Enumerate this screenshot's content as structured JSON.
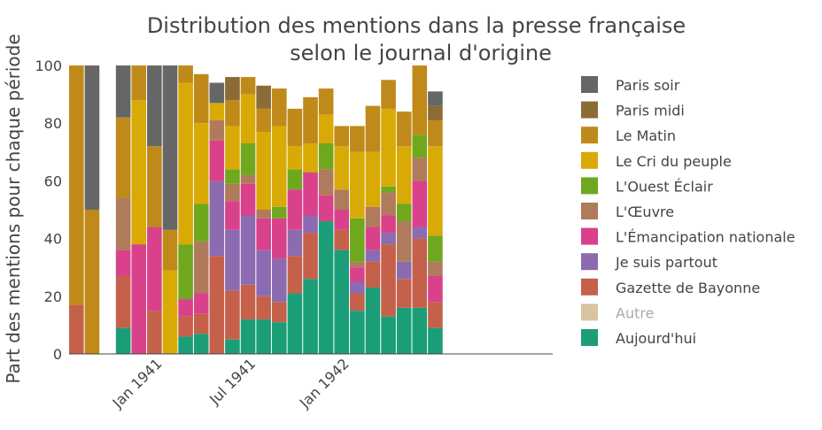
{
  "chart_data": {
    "type": "bar",
    "stacked": true,
    "title_line1": "Distribution des mentions dans la presse française",
    "title_line2": "selon le journal d'origine",
    "xlabel": "",
    "ylabel": "Part des mentions pour chaque période",
    "ylim": [
      0,
      100
    ],
    "yticks": [
      0,
      20,
      40,
      60,
      80,
      100
    ],
    "xtick_labels": [
      "Jan 1941",
      "Jul 1941",
      "Jan 1942"
    ],
    "legend_position": "right",
    "grid": false,
    "categories": [
      "1940-07",
      "1940-08",
      "1940-09",
      "1940-10",
      "1940-11",
      "1940-12",
      "1941-01",
      "1941-02",
      "1941-03",
      "1941-04",
      "1941-05",
      "1941-06",
      "1941-07",
      "1941-08",
      "1941-09",
      "1941-10",
      "1941-11",
      "1941-12",
      "1942-01",
      "1942-02",
      "1942-03",
      "1942-04",
      "1942-05",
      "1942-06",
      "1942-07",
      "1942-08",
      "1942-09",
      "1942-10",
      "1942-11",
      "1942-12",
      "1943-01"
    ],
    "series": [
      {
        "name": "Aujourd'hui",
        "color": "#1b9e77",
        "values": [
          0,
          0,
          0,
          9,
          0,
          0,
          0,
          6,
          7,
          0,
          5,
          12,
          12,
          11,
          21,
          26,
          46,
          36,
          15,
          23,
          13,
          16,
          16,
          9,
          0,
          0,
          0,
          0,
          0,
          0,
          0
        ]
      },
      {
        "name": "Autre",
        "color": "#d9c3a1",
        "values": [
          0,
          0,
          0,
          0,
          0,
          0,
          0,
          0,
          0,
          0,
          0,
          0,
          0,
          0,
          0,
          0,
          0,
          0,
          0,
          0,
          0,
          0,
          0,
          0,
          0,
          0,
          0,
          0,
          0,
          0,
          0
        ]
      },
      {
        "name": "Gazette de Bayonne",
        "color": "#c5604b",
        "values": [
          17,
          0,
          0,
          18,
          0,
          15,
          0,
          7,
          7,
          34,
          17,
          12,
          8,
          7,
          13,
          16,
          0,
          7,
          6,
          9,
          25,
          10,
          24,
          9,
          0,
          0,
          0,
          0,
          0,
          0,
          0
        ]
      },
      {
        "name": "Je suis partout",
        "color": "#8c6bb1",
        "values": [
          0,
          0,
          0,
          0,
          0,
          0,
          0,
          0,
          0,
          26,
          21,
          24,
          16,
          15,
          9,
          6,
          0,
          0,
          4,
          4,
          4,
          6,
          4,
          0,
          0,
          0,
          0,
          0,
          0,
          0,
          0
        ]
      },
      {
        "name": "L'Émancipation nationale",
        "color": "#d9418a",
        "values": [
          0,
          0,
          0,
          9,
          38,
          29,
          0,
          6,
          7,
          14,
          10,
          11,
          11,
          14,
          14,
          15,
          9,
          7,
          5,
          8,
          6,
          0,
          16,
          9,
          0,
          0,
          0,
          0,
          0,
          0,
          0
        ]
      },
      {
        "name": "L'Œuvre",
        "color": "#b07a5c",
        "values": [
          0,
          0,
          0,
          18,
          0,
          0,
          0,
          0,
          18,
          7,
          6,
          3,
          3,
          0,
          0,
          0,
          9,
          7,
          2,
          7,
          8,
          14,
          8,
          5,
          0,
          0,
          0,
          0,
          0,
          0,
          0
        ]
      },
      {
        "name": "L'Ouest Éclair",
        "color": "#6fa81e",
        "values": [
          0,
          0,
          0,
          0,
          0,
          0,
          0,
          19,
          13,
          0,
          5,
          11,
          0,
          4,
          7,
          0,
          9,
          0,
          15,
          0,
          2,
          6,
          8,
          9,
          0,
          0,
          0,
          0,
          0,
          0,
          0
        ]
      },
      {
        "name": "Le Cri du peuple",
        "color": "#d9aa06",
        "values": [
          0,
          0,
          0,
          0,
          50,
          0,
          29,
          56,
          28,
          6,
          15,
          17,
          27,
          28,
          8,
          10,
          10,
          15,
          23,
          19,
          27,
          20,
          0,
          31,
          0,
          0,
          0,
          0,
          0,
          0,
          0
        ]
      },
      {
        "name": "Le Matin",
        "color": "#bf8a1a",
        "values": [
          83,
          50,
          0,
          28,
          12,
          28,
          14,
          6,
          17,
          0,
          9,
          6,
          8,
          13,
          13,
          16,
          9,
          7,
          9,
          16,
          10,
          12,
          24,
          9,
          0,
          0,
          0,
          0,
          0,
          0,
          0
        ]
      },
      {
        "name": "Paris midi",
        "color": "#8c6b36",
        "values": [
          0,
          0,
          0,
          0,
          0,
          0,
          0,
          0,
          0,
          0,
          8,
          0,
          8,
          0,
          0,
          0,
          0,
          0,
          0,
          0,
          0,
          0,
          0,
          5,
          0,
          0,
          0,
          0,
          0,
          0,
          0
        ]
      },
      {
        "name": "Paris soir",
        "color": "#666666",
        "values": [
          0,
          50,
          0,
          18,
          0,
          28,
          57,
          0,
          0,
          7,
          0,
          0,
          0,
          0,
          0,
          0,
          0,
          0,
          0,
          0,
          0,
          0,
          0,
          5,
          0,
          0,
          0,
          0,
          0,
          0,
          0
        ]
      }
    ],
    "legend_order": [
      "Paris soir",
      "Paris midi",
      "Le Matin",
      "Le Cri du peuple",
      "L'Ouest Éclair",
      "L'Œuvre",
      "L'Émancipation nationale",
      "Je suis partout",
      "Gazette de Bayonne",
      "Autre",
      "Aujourd'hui"
    ]
  }
}
